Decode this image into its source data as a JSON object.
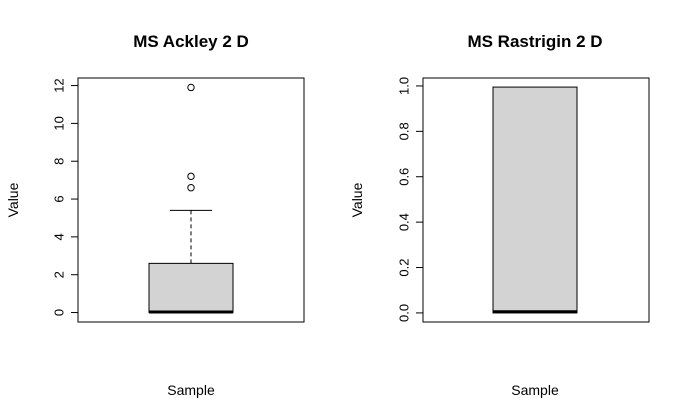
{
  "chart_data": [
    {
      "type": "boxplot",
      "title": "MS Ackley 2 D",
      "xlabel": "Sample",
      "ylabel": "Value",
      "ylim": [
        -0.5,
        12.4
      ],
      "yticks": [
        0,
        2,
        4,
        6,
        8,
        10,
        12
      ],
      "ytick_labels": [
        "0",
        "2",
        "4",
        "6",
        "8",
        "10",
        "12"
      ],
      "box": {
        "min": 0.0,
        "q1": 0.0,
        "median": 0.03,
        "q3": 2.6,
        "whisker_high": 5.4
      },
      "outliers": [
        6.6,
        7.2,
        11.9
      ],
      "colors": {
        "box_fill": "#d3d3d3",
        "line": "#000000"
      },
      "grid": false
    },
    {
      "type": "boxplot",
      "title": "MS Rastrigin 2 D",
      "xlabel": "Sample",
      "ylabel": "Value",
      "ylim": [
        -0.04,
        1.035
      ],
      "yticks": [
        0.0,
        0.2,
        0.4,
        0.6,
        0.8,
        1.0
      ],
      "ytick_labels": [
        "0.0",
        "0.2",
        "0.4",
        "0.6",
        "0.8",
        "1.0"
      ],
      "box": {
        "min": 0.0,
        "q1": 0.0,
        "median": 0.005,
        "q3": 0.995,
        "whisker_high": 0.995
      },
      "outliers": [],
      "colors": {
        "box_fill": "#d3d3d3",
        "line": "#000000"
      },
      "grid": false
    }
  ]
}
